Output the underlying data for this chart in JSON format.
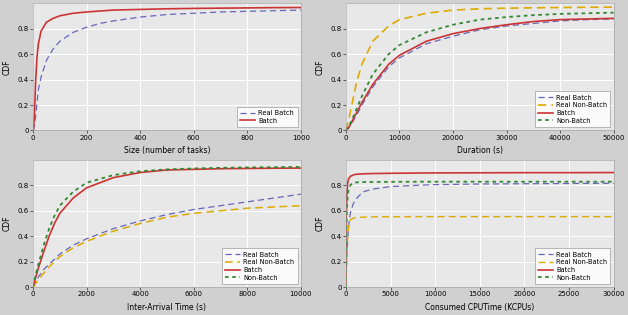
{
  "fig_background": "#d0d0d0",
  "ax_background": "#e8e8e8",
  "plot1": {
    "xlabel": "Size (number of tasks)",
    "ylabel": "CDF",
    "xlim": [
      0,
      1000
    ],
    "ylim": [
      0.0,
      1.0
    ],
    "xticks": [
      0,
      200,
      400,
      600,
      800,
      1000
    ],
    "yticks": [
      0.0,
      0.2,
      0.4,
      0.6,
      0.8
    ],
    "series": [
      {
        "label": "Real Batch",
        "color": "#6666bb",
        "linestyle": "dashed",
        "linewidth": 0.9,
        "x": [
          1,
          2,
          3,
          5,
          8,
          10,
          15,
          20,
          30,
          50,
          75,
          100,
          150,
          200,
          250,
          300,
          400,
          500,
          600,
          700,
          800,
          900,
          1000
        ],
        "y": [
          0.0,
          0.01,
          0.02,
          0.04,
          0.08,
          0.12,
          0.22,
          0.32,
          0.42,
          0.55,
          0.64,
          0.7,
          0.77,
          0.81,
          0.84,
          0.86,
          0.89,
          0.91,
          0.92,
          0.93,
          0.935,
          0.94,
          0.945
        ]
      },
      {
        "label": "Batch",
        "color": "#cc3333",
        "linestyle": "solid",
        "linewidth": 1.2,
        "x": [
          1,
          2,
          3,
          5,
          8,
          10,
          15,
          20,
          30,
          50,
          75,
          100,
          150,
          200,
          300,
          400,
          500,
          600,
          700,
          800,
          900,
          1000
        ],
        "y": [
          0.0,
          0.02,
          0.05,
          0.12,
          0.28,
          0.4,
          0.58,
          0.68,
          0.78,
          0.85,
          0.88,
          0.9,
          0.92,
          0.93,
          0.945,
          0.95,
          0.955,
          0.958,
          0.96,
          0.962,
          0.964,
          0.965
        ]
      }
    ],
    "legend_loc": "lower right"
  },
  "plot2": {
    "xlabel": "Duration (s)",
    "ylabel": "CDF",
    "xlim": [
      0,
      50000
    ],
    "ylim": [
      0.0,
      1.0
    ],
    "xticks": [
      0,
      10000,
      20000,
      30000,
      40000,
      50000
    ],
    "yticks": [
      0.0,
      0.2,
      0.4,
      0.6,
      0.8
    ],
    "series": [
      {
        "label": "Real Batch",
        "color": "#6666bb",
        "linestyle": "dashed",
        "linewidth": 0.9,
        "x": [
          0,
          500,
          1000,
          2000,
          3000,
          5000,
          8000,
          10000,
          15000,
          20000,
          25000,
          30000,
          35000,
          40000,
          45000,
          50000
        ],
        "y": [
          0.0,
          0.02,
          0.05,
          0.12,
          0.2,
          0.34,
          0.5,
          0.57,
          0.68,
          0.74,
          0.79,
          0.82,
          0.84,
          0.86,
          0.87,
          0.875
        ]
      },
      {
        "label": "Real Non-Batch",
        "color": "#ddaa00",
        "linestyle": "dashed",
        "linewidth": 1.2,
        "x": [
          0,
          500,
          1000,
          2000,
          3000,
          5000,
          8000,
          10000,
          15000,
          20000,
          25000,
          30000,
          35000,
          40000,
          45000,
          50000
        ],
        "y": [
          0.0,
          0.08,
          0.18,
          0.38,
          0.52,
          0.7,
          0.82,
          0.87,
          0.92,
          0.945,
          0.955,
          0.96,
          0.963,
          0.965,
          0.967,
          0.968
        ]
      },
      {
        "label": "Batch",
        "color": "#cc3333",
        "linestyle": "solid",
        "linewidth": 1.2,
        "x": [
          0,
          500,
          1000,
          2000,
          3000,
          5000,
          8000,
          10000,
          15000,
          20000,
          25000,
          30000,
          35000,
          40000,
          45000,
          50000
        ],
        "y": [
          0.0,
          0.02,
          0.06,
          0.14,
          0.22,
          0.36,
          0.52,
          0.59,
          0.7,
          0.76,
          0.8,
          0.83,
          0.855,
          0.87,
          0.875,
          0.88
        ]
      },
      {
        "label": "Non-Batch",
        "color": "#338833",
        "linestyle": "dotted",
        "linewidth": 1.3,
        "x": [
          0,
          500,
          1000,
          2000,
          3000,
          5000,
          8000,
          10000,
          15000,
          20000,
          25000,
          30000,
          35000,
          40000,
          45000,
          50000
        ],
        "y": [
          0.0,
          0.03,
          0.07,
          0.17,
          0.27,
          0.44,
          0.6,
          0.67,
          0.77,
          0.83,
          0.87,
          0.89,
          0.905,
          0.915,
          0.92,
          0.925
        ]
      }
    ],
    "legend_loc": "lower right"
  },
  "plot3": {
    "xlabel": "Inter-Arrival Time (s)",
    "ylabel": "CDF",
    "xlim": [
      0,
      10000
    ],
    "ylim": [
      0.0,
      1.0
    ],
    "xticks": [
      0,
      2000,
      4000,
      6000,
      8000,
      10000
    ],
    "yticks": [
      0.0,
      0.2,
      0.4,
      0.6,
      0.8
    ],
    "series": [
      {
        "label": "Real Batch",
        "color": "#6666bb",
        "linestyle": "dashed",
        "linewidth": 0.9,
        "x": [
          0,
          100,
          200,
          400,
          600,
          800,
          1000,
          1500,
          2000,
          3000,
          4000,
          5000,
          6000,
          7000,
          8000,
          9000,
          10000
        ],
        "y": [
          0.0,
          0.04,
          0.08,
          0.14,
          0.18,
          0.22,
          0.26,
          0.33,
          0.38,
          0.46,
          0.52,
          0.57,
          0.61,
          0.64,
          0.67,
          0.7,
          0.73
        ]
      },
      {
        "label": "Real Non-Batch",
        "color": "#ddaa00",
        "linestyle": "dashed",
        "linewidth": 1.1,
        "x": [
          0,
          100,
          200,
          400,
          600,
          800,
          1000,
          1500,
          2000,
          3000,
          4000,
          5000,
          6000,
          7000,
          8000,
          9000,
          10000
        ],
        "y": [
          0.0,
          0.03,
          0.06,
          0.11,
          0.16,
          0.2,
          0.24,
          0.31,
          0.36,
          0.44,
          0.5,
          0.55,
          0.58,
          0.6,
          0.62,
          0.63,
          0.64
        ]
      },
      {
        "label": "Batch",
        "color": "#cc3333",
        "linestyle": "solid",
        "linewidth": 1.2,
        "x": [
          0,
          100,
          200,
          400,
          600,
          800,
          1000,
          1500,
          2000,
          3000,
          4000,
          5000,
          6000,
          7000,
          8000,
          9000,
          10000
        ],
        "y": [
          0.0,
          0.08,
          0.15,
          0.28,
          0.4,
          0.5,
          0.58,
          0.7,
          0.78,
          0.86,
          0.9,
          0.92,
          0.925,
          0.93,
          0.932,
          0.934,
          0.935
        ]
      },
      {
        "label": "Non-Batch",
        "color": "#338833",
        "linestyle": "dotted",
        "linewidth": 1.3,
        "x": [
          0,
          100,
          200,
          400,
          600,
          800,
          1000,
          1500,
          2000,
          3000,
          4000,
          5000,
          6000,
          7000,
          8000,
          9000,
          10000
        ],
        "y": [
          0.0,
          0.1,
          0.18,
          0.33,
          0.46,
          0.56,
          0.64,
          0.75,
          0.82,
          0.88,
          0.91,
          0.925,
          0.932,
          0.937,
          0.94,
          0.942,
          0.944
        ]
      }
    ],
    "legend_loc": "lower right"
  },
  "plot4": {
    "xlabel": "Consumed CPUTime (KCPUs)",
    "ylabel": "CDF",
    "xlim": [
      0,
      30000
    ],
    "ylim": [
      0.0,
      1.0
    ],
    "xticks": [
      0,
      5000,
      10000,
      15000,
      20000,
      25000,
      30000
    ],
    "yticks": [
      0.0,
      0.2,
      0.4,
      0.6,
      0.8
    ],
    "series": [
      {
        "label": "Real Batch",
        "color": "#6666bb",
        "linestyle": "dashed",
        "linewidth": 0.9,
        "x": [
          0,
          50,
          100,
          200,
          300,
          500,
          800,
          1000,
          1500,
          2000,
          3000,
          5000,
          8000,
          10000,
          15000,
          20000,
          25000,
          30000
        ],
        "y": [
          0.0,
          0.1,
          0.22,
          0.38,
          0.48,
          0.58,
          0.65,
          0.68,
          0.72,
          0.75,
          0.77,
          0.79,
          0.8,
          0.805,
          0.81,
          0.812,
          0.814,
          0.816
        ]
      },
      {
        "label": "Real Non-Batch",
        "color": "#ddaa00",
        "linestyle": "dashed",
        "linewidth": 1.0,
        "x": [
          0,
          50,
          100,
          200,
          300,
          500,
          800,
          1000,
          1500,
          2000,
          3000,
          5000,
          8000,
          10000,
          15000,
          20000,
          25000,
          30000
        ],
        "y": [
          0.0,
          0.12,
          0.25,
          0.4,
          0.48,
          0.53,
          0.54,
          0.545,
          0.548,
          0.55,
          0.552,
          0.553,
          0.554,
          0.554,
          0.554,
          0.554,
          0.554,
          0.554
        ]
      },
      {
        "label": "Batch",
        "color": "#cc3333",
        "linestyle": "solid",
        "linewidth": 1.2,
        "x": [
          0,
          20,
          50,
          100,
          200,
          300,
          500,
          800,
          1000,
          1500,
          2000,
          3000,
          5000,
          8000,
          10000,
          15000,
          20000,
          25000,
          30000
        ],
        "y": [
          0.0,
          0.3,
          0.55,
          0.72,
          0.82,
          0.85,
          0.87,
          0.88,
          0.885,
          0.888,
          0.89,
          0.892,
          0.894,
          0.896,
          0.897,
          0.898,
          0.899,
          0.899,
          0.9
        ]
      },
      {
        "label": "Non-Batch",
        "color": "#338833",
        "linestyle": "dotted",
        "linewidth": 1.3,
        "x": [
          0,
          20,
          50,
          100,
          200,
          300,
          500,
          800,
          1000,
          1500,
          2000,
          3000,
          5000,
          8000,
          10000,
          15000,
          20000,
          25000,
          30000
        ],
        "y": [
          0.0,
          0.2,
          0.42,
          0.6,
          0.72,
          0.77,
          0.8,
          0.82,
          0.822,
          0.824,
          0.825,
          0.826,
          0.827,
          0.828,
          0.828,
          0.828,
          0.828,
          0.828,
          0.828
        ]
      }
    ],
    "legend_loc": "lower right"
  }
}
